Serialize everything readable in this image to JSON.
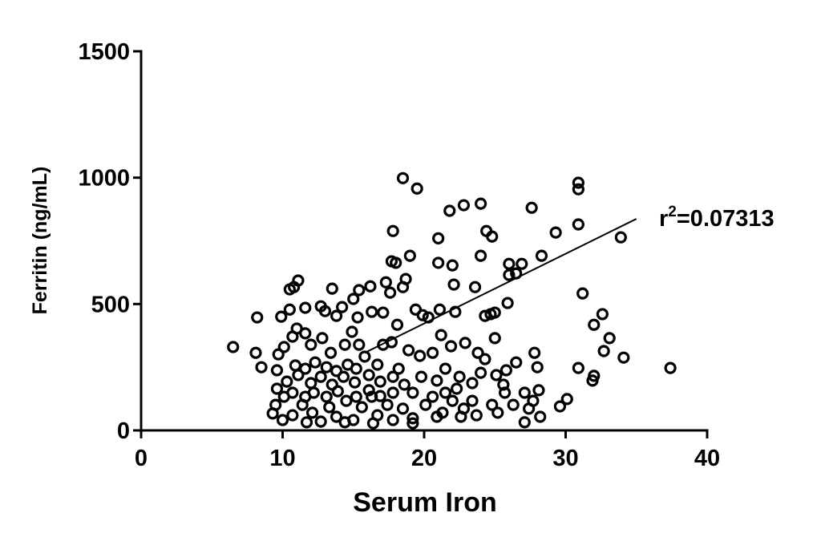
{
  "chart_data": {
    "type": "scatter",
    "xlabel": "Serum Iron",
    "ylabel": "Ferritin (ng/mL)",
    "annotation": {
      "base": "r",
      "sup": "2",
      "rest": "=0.07313"
    },
    "xlim": [
      0,
      40
    ],
    "xticks": [
      0,
      10,
      20,
      30,
      40
    ],
    "ylim": [
      0,
      1500
    ],
    "yticks": [
      0,
      500,
      1000,
      1500
    ],
    "color": "#000000",
    "x": [
      18.5,
      19.5,
      30.9,
      30.9,
      24.0,
      22.8,
      21.8,
      27.6,
      30.9,
      33.9,
      29.3,
      24.4,
      24.8,
      17.8,
      21,
      19,
      24,
      28.3,
      17.7,
      18,
      21,
      22,
      26,
      26.9,
      26,
      26.5,
      18.7,
      17.3,
      11.1,
      10.8,
      10.5,
      13.5,
      22.1,
      23.6,
      18.5,
      16.2,
      15.4,
      15,
      17.6,
      31.2,
      25.9,
      32.6,
      32,
      24.7,
      25,
      24.3,
      22.2,
      8.2,
      9.9,
      10.5,
      11.6,
      12.7,
      13,
      14.2,
      13.8,
      15.3,
      16.3,
      17.1,
      19.4,
      19.9,
      20.3,
      21.1,
      18.1,
      33.1,
      32.7,
      34.1,
      37.4,
      30.9,
      32,
      31.9,
      27.8,
      28,
      26.5,
      25.8,
      25.1,
      6.5,
      8.1,
      8.5,
      9.6,
      9.7,
      10.1,
      10.7,
      11,
      11.6,
      12,
      12.8,
      13.4,
      14.4,
      14.9,
      15.4,
      15.8,
      16.7,
      17.1,
      17.7,
      18.2,
      18.9,
      19.7,
      20.6,
      21.2,
      21.9,
      22.9,
      23.8,
      24.3,
      25,
      24,
      23.4,
      22.5,
      21.5,
      20.9,
      19.8,
      18.6,
      17.8,
      16.9,
      16.1,
      15.1,
      14.3,
      13.5,
      12.7,
      12,
      11.1,
      10.3,
      9.6,
      10.1,
      9.5,
      9.3,
      10,
      10.7,
      11.4,
      12.1,
      12.7,
      13.3,
      13.8,
      14.5,
      15,
      15.6,
      16.3,
      16.7,
      17.4,
      17.8,
      18.5,
      19.2,
      19.2,
      20.1,
      20.6,
      21.3,
      22,
      22.8,
      23.4,
      23.7,
      25.2,
      25.7,
      25.6,
      27.1,
      27.4,
      27.7,
      28.2,
      28.1,
      29.6,
      30.1,
      27.1,
      10.9,
      11.6,
      12.3,
      13.1,
      13.8,
      14.6,
      15.2,
      12.2,
      13.1,
      13.9,
      15.2,
      16.1,
      16.9,
      17.8,
      21.5,
      22.3,
      10.7,
      11.6,
      22.6,
      20.9,
      16.4,
      19.2,
      14.4,
      11.7,
      24.8,
      26.3
    ],
    "values": [
      998,
      957,
      980,
      954,
      897,
      891,
      869,
      881,
      815,
      764,
      783,
      789,
      767,
      789,
      760,
      691,
      691,
      691,
      669,
      663,
      663,
      653,
      659,
      659,
      615,
      621,
      599,
      586,
      593,
      567,
      558,
      561,
      577,
      567,
      567,
      570,
      555,
      520,
      545,
      542,
      504,
      460,
      418,
      460,
      466,
      453,
      469,
      447,
      450,
      478,
      485,
      491,
      472,
      488,
      453,
      447,
      469,
      466,
      478,
      456,
      447,
      478,
      418,
      365,
      314,
      288,
      247,
      247,
      216,
      197,
      307,
      250,
      269,
      238,
      219,
      330,
      307,
      250,
      238,
      301,
      330,
      371,
      403,
      384,
      339,
      365,
      307,
      339,
      390,
      339,
      292,
      260,
      339,
      349,
      244,
      317,
      295,
      307,
      377,
      333,
      346,
      307,
      282,
      365,
      228,
      187,
      212,
      244,
      197,
      212,
      181,
      212,
      193,
      219,
      190,
      212,
      181,
      212,
      187,
      219,
      193,
      165,
      133,
      101,
      67,
      41,
      60,
      101,
      70,
      35,
      92,
      54,
      117,
      41,
      92,
      133,
      60,
      101,
      41,
      86,
      149,
      48,
      101,
      133,
      70,
      117,
      86,
      117,
      60,
      70,
      149,
      181,
      32,
      86,
      117,
      54,
      159,
      95,
      124,
      149,
      257,
      244,
      269,
      250,
      235,
      260,
      244,
      149,
      133,
      155,
      133,
      159,
      136,
      149,
      149,
      165,
      149,
      133,
      54,
      54,
      28,
      28,
      32,
      32,
      101,
      101
    ],
    "trendline": {
      "x": [
        15.8,
        35
      ],
      "values": [
        307,
        837
      ]
    }
  }
}
